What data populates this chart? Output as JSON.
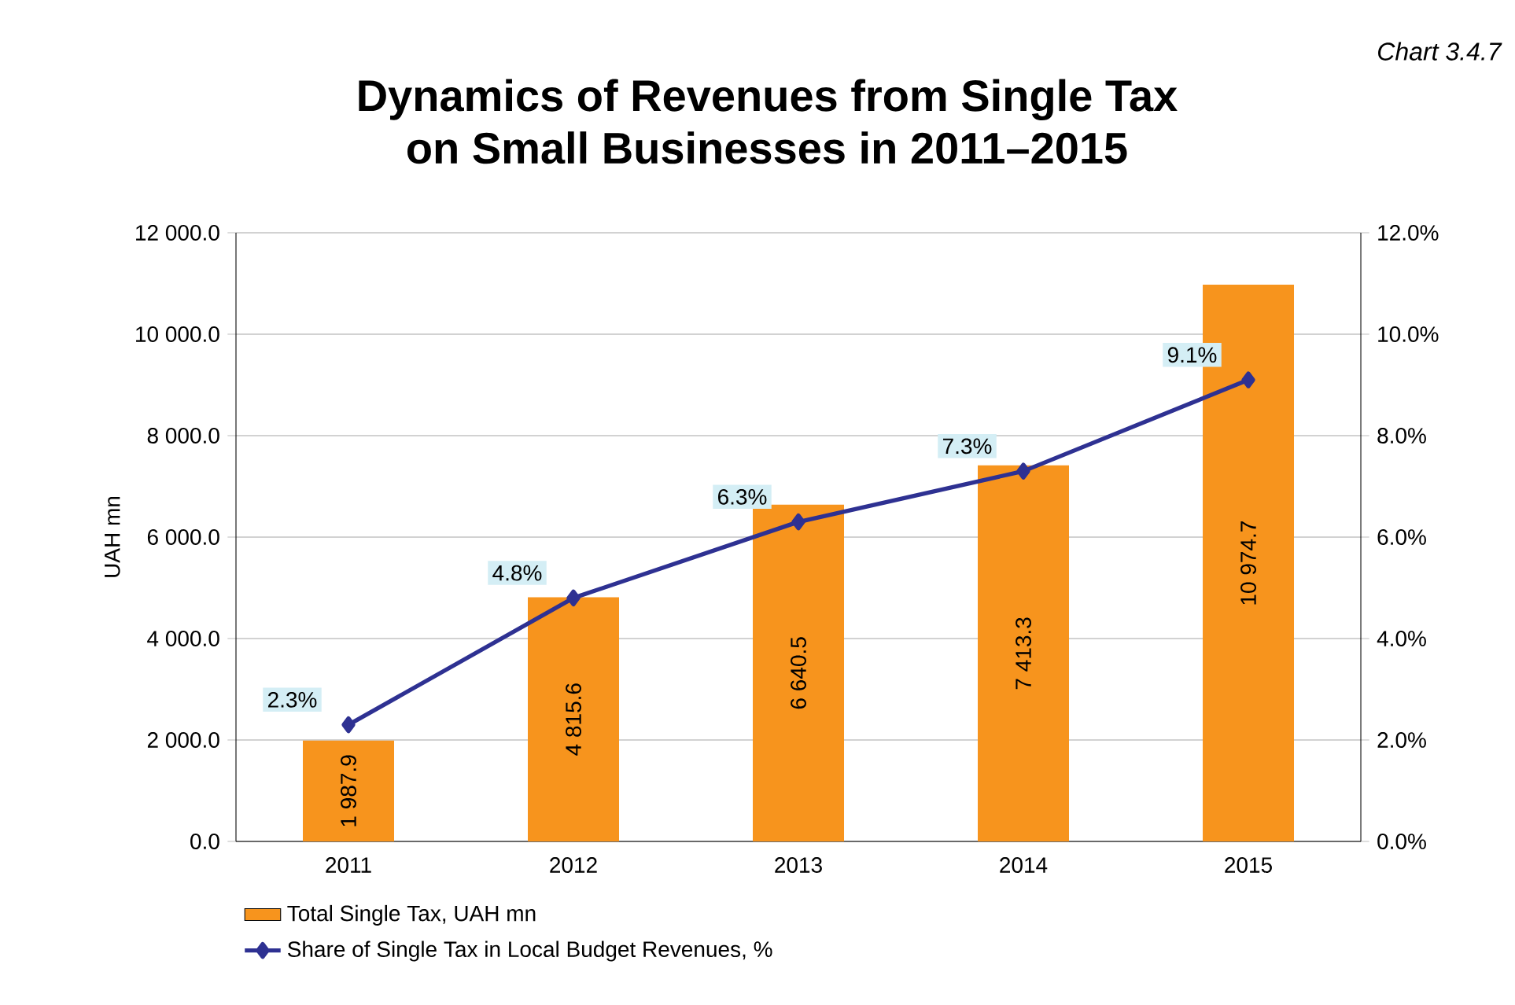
{
  "chart_data": {
    "type": "bar",
    "title": "Dynamics of Revenues from Single Tax\non Small Businesses in 2011–2015",
    "ylabel": "UAH mn",
    "annotations": [
      "Chart 3.4.7"
    ],
    "categories": [
      "2011",
      "2012",
      "2013",
      "2014",
      "2015"
    ],
    "series": [
      {
        "name": "Total Single Tax, UAH mn",
        "color": "#f7941d",
        "values": [
          1987.9,
          4815.6,
          6640.5,
          7413.3,
          10974.7
        ],
        "value_labels": [
          "1 987.9",
          "4 815.6",
          "6 640.5",
          "7 413.3",
          "10 974.7"
        ]
      },
      {
        "name": "Share of Single Tax in Local Budget Revenues, %",
        "type": "line",
        "axis": "y2",
        "color": "#2e3192",
        "marker": "diamond",
        "values": [
          2.3,
          4.8,
          6.3,
          7.3,
          9.1
        ],
        "value_labels": [
          "2.3%",
          "4.8%",
          "6.3%",
          "7.3%",
          "9.1%"
        ]
      }
    ],
    "ylim": [
      0,
      12000
    ],
    "yticks": [
      {
        "value": 0,
        "label": "0.0"
      },
      {
        "value": 2000,
        "label": "2 000.0"
      },
      {
        "value": 4000,
        "label": "4 000.0"
      },
      {
        "value": 6000,
        "label": "6 000.0"
      },
      {
        "value": 8000,
        "label": "8 000.0"
      },
      {
        "value": 10000,
        "label": "10 000.0"
      },
      {
        "value": 12000,
        "label": "12 000.0"
      }
    ],
    "y2lim": [
      0,
      12
    ],
    "y2ticks": [
      {
        "value": 0,
        "label": "0.0%"
      },
      {
        "value": 2,
        "label": "2.0%"
      },
      {
        "value": 4,
        "label": "4.0%"
      },
      {
        "value": 6,
        "label": "6.0%"
      },
      {
        "value": 8,
        "label": "8.0%"
      },
      {
        "value": 10,
        "label": "10.0%"
      },
      {
        "value": 12,
        "label": "12.0%"
      }
    ],
    "grid": "y",
    "legend": "bottom left"
  }
}
